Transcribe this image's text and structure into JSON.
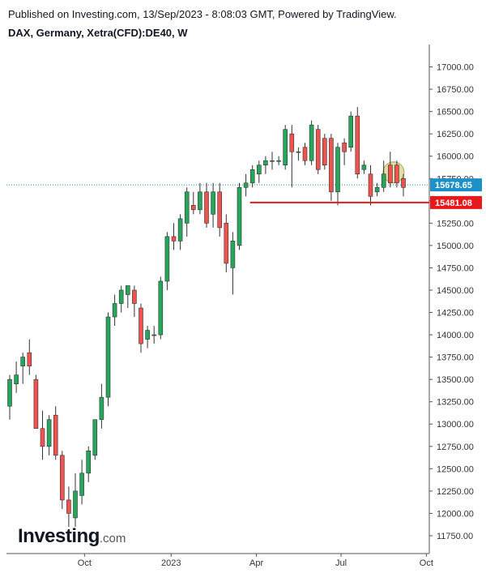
{
  "header": {
    "published": "Published on Investing.com, 13/Sep/2023 - 8:08:03 GMT, Powered by TradingView.",
    "symbol": "DAX, Germany, Xetra(CFD):DE40, W"
  },
  "logo": {
    "main": "Investing",
    "sub": ".com"
  },
  "colors": {
    "up": "#26a65b",
    "down": "#ef5350",
    "wick": "#333333",
    "support": "#e8191b",
    "price": "#1e90c8",
    "highlight": "#c8c060"
  },
  "chart_data": {
    "type": "candlestick",
    "title": "DAX, Germany, Xetra(CFD):DE40, W",
    "ylim": [
      11550,
      17250
    ],
    "y_ticks": [
      "17000.00",
      "16750.00",
      "16500.00",
      "16250.00",
      "16000.00",
      "15750.00",
      "15500.00",
      "15250.00",
      "15000.00",
      "14750.00",
      "14500.00",
      "14250.00",
      "14000.00",
      "13750.00",
      "13500.00",
      "13250.00",
      "13000.00",
      "12750.00",
      "12500.00",
      "12250.00",
      "12000.00",
      "11750.00"
    ],
    "x_ticks": [
      {
        "label": "Oct",
        "index": 11.4
      },
      {
        "label": "2023",
        "index": 24.6
      },
      {
        "label": "Apr",
        "index": 37.6
      },
      {
        "label": "Jul",
        "index": 50.5
      },
      {
        "label": "Oct",
        "index": 63.5
      }
    ],
    "current_price": {
      "value": 15678.65,
      "label": "15678.65"
    },
    "support_level": {
      "value": 15481.08,
      "label": "15481.08",
      "from_index": 37
    },
    "highlight_index": 59,
    "candles": [
      {
        "o": 13200,
        "h": 13550,
        "l": 13050,
        "c": 13500
      },
      {
        "o": 13450,
        "h": 13700,
        "l": 13350,
        "c": 13550
      },
      {
        "o": 13650,
        "h": 13800,
        "l": 13450,
        "c": 13750
      },
      {
        "o": 13800,
        "h": 13950,
        "l": 13550,
        "c": 13650
      },
      {
        "o": 13500,
        "h": 13550,
        "l": 12950,
        "c": 12950
      },
      {
        "o": 12950,
        "h": 13150,
        "l": 12600,
        "c": 12750
      },
      {
        "o": 12750,
        "h": 13100,
        "l": 12650,
        "c": 13050
      },
      {
        "o": 13100,
        "h": 13200,
        "l": 12600,
        "c": 12650
      },
      {
        "o": 12650,
        "h": 12700,
        "l": 12050,
        "c": 12150
      },
      {
        "o": 12150,
        "h": 12300,
        "l": 11850,
        "c": 12000
      },
      {
        "o": 11950,
        "h": 12450,
        "l": 11850,
        "c": 12250
      },
      {
        "o": 12200,
        "h": 12600,
        "l": 12100,
        "c": 12450
      },
      {
        "o": 12450,
        "h": 12750,
        "l": 12350,
        "c": 12700
      },
      {
        "o": 12650,
        "h": 13050,
        "l": 12600,
        "c": 13050
      },
      {
        "o": 13050,
        "h": 13450,
        "l": 12950,
        "c": 13300
      },
      {
        "o": 13300,
        "h": 14250,
        "l": 13200,
        "c": 14200
      },
      {
        "o": 14200,
        "h": 14450,
        "l": 14100,
        "c": 14350
      },
      {
        "o": 14350,
        "h": 14550,
        "l": 14250,
        "c": 14500
      },
      {
        "o": 14450,
        "h": 14550,
        "l": 14300,
        "c": 14550
      },
      {
        "o": 14500,
        "h": 14550,
        "l": 14200,
        "c": 14350
      },
      {
        "o": 14300,
        "h": 14350,
        "l": 13800,
        "c": 13900
      },
      {
        "o": 13950,
        "h": 14100,
        "l": 13850,
        "c": 14050
      },
      {
        "o": 14000,
        "h": 14100,
        "l": 13900,
        "c": 14000
      },
      {
        "o": 14000,
        "h": 14650,
        "l": 13950,
        "c": 14600
      },
      {
        "o": 14600,
        "h": 15150,
        "l": 14500,
        "c": 15100
      },
      {
        "o": 15100,
        "h": 15250,
        "l": 14950,
        "c": 15050
      },
      {
        "o": 15050,
        "h": 15350,
        "l": 14950,
        "c": 15300
      },
      {
        "o": 15250,
        "h": 15650,
        "l": 15100,
        "c": 15600
      },
      {
        "o": 15450,
        "h": 15600,
        "l": 15350,
        "c": 15400
      },
      {
        "o": 15400,
        "h": 15700,
        "l": 15350,
        "c": 15600
      },
      {
        "o": 15600,
        "h": 15700,
        "l": 15200,
        "c": 15250
      },
      {
        "o": 15350,
        "h": 15700,
        "l": 15200,
        "c": 15600
      },
      {
        "o": 15600,
        "h": 15700,
        "l": 15100,
        "c": 15200
      },
      {
        "o": 15250,
        "h": 15350,
        "l": 14700,
        "c": 14800
      },
      {
        "o": 14750,
        "h": 15150,
        "l": 14450,
        "c": 15050
      },
      {
        "o": 15000,
        "h": 15700,
        "l": 14950,
        "c": 15650
      },
      {
        "o": 15650,
        "h": 15800,
        "l": 15550,
        "c": 15700
      },
      {
        "o": 15700,
        "h": 15900,
        "l": 15650,
        "c": 15850
      },
      {
        "o": 15800,
        "h": 15950,
        "l": 15700,
        "c": 15900
      },
      {
        "o": 15900,
        "h": 16000,
        "l": 15800,
        "c": 15950
      },
      {
        "o": 15950,
        "h": 16050,
        "l": 15850,
        "c": 15950
      },
      {
        "o": 15950,
        "h": 16000,
        "l": 15900,
        "c": 15950
      },
      {
        "o": 15900,
        "h": 16350,
        "l": 15850,
        "c": 16300
      },
      {
        "o": 16250,
        "h": 16350,
        "l": 15650,
        "c": 16050
      },
      {
        "o": 16050,
        "h": 16100,
        "l": 15950,
        "c": 16050
      },
      {
        "o": 16100,
        "h": 16150,
        "l": 15900,
        "c": 15950
      },
      {
        "o": 15950,
        "h": 16400,
        "l": 15900,
        "c": 16350
      },
      {
        "o": 16300,
        "h": 16350,
        "l": 15800,
        "c": 15850
      },
      {
        "o": 16200,
        "h": 16250,
        "l": 15850,
        "c": 15900
      },
      {
        "o": 16200,
        "h": 16250,
        "l": 15500,
        "c": 15600
      },
      {
        "o": 15600,
        "h": 16150,
        "l": 15450,
        "c": 16100
      },
      {
        "o": 16150,
        "h": 16200,
        "l": 15900,
        "c": 16050
      },
      {
        "o": 16100,
        "h": 16500,
        "l": 16050,
        "c": 16450
      },
      {
        "o": 16450,
        "h": 16550,
        "l": 15750,
        "c": 15800
      },
      {
        "o": 15850,
        "h": 15950,
        "l": 15800,
        "c": 15900
      },
      {
        "o": 15800,
        "h": 15900,
        "l": 15450,
        "c": 15550
      },
      {
        "o": 15600,
        "h": 15700,
        "l": 15550,
        "c": 15650
      },
      {
        "o": 15650,
        "h": 15950,
        "l": 15600,
        "c": 15800
      },
      {
        "o": 15900,
        "h": 16050,
        "l": 15650,
        "c": 15700
      },
      {
        "o": 15900,
        "h": 15950,
        "l": 15650,
        "c": 15700
      },
      {
        "o": 15750,
        "h": 15800,
        "l": 15550,
        "c": 15650
      }
    ]
  }
}
